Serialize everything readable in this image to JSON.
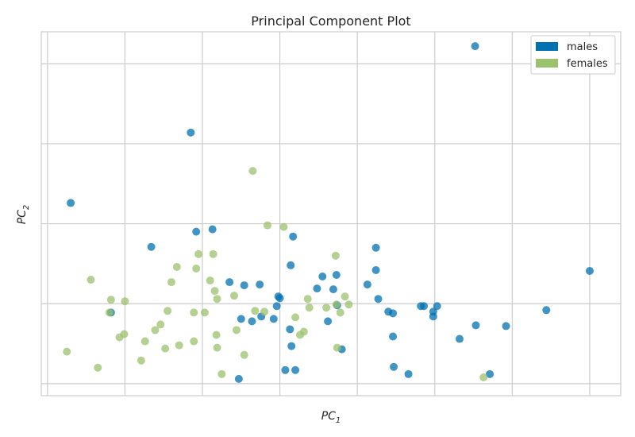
{
  "chart_data": {
    "type": "scatter",
    "title": "Principal Component Plot",
    "xlabel": {
      "base": "PC",
      "sub": "1"
    },
    "ylabel": {
      "base": "PC",
      "sub": "2"
    },
    "xlim": [
      -0.08,
      7.4
    ],
    "ylim": [
      -0.15,
      4.4
    ],
    "grid": true,
    "tick_labels_visible": false,
    "legend_position": "top-right",
    "series": [
      {
        "name": "males",
        "color": "#0072B2",
        "points": [
          [
            5.52,
            4.22
          ],
          [
            1.85,
            3.14
          ],
          [
            0.3,
            2.26
          ],
          [
            1.92,
            1.9
          ],
          [
            2.13,
            1.93
          ],
          [
            1.34,
            1.71
          ],
          [
            3.17,
            1.84
          ],
          [
            3.14,
            1.48
          ],
          [
            4.24,
            1.7
          ],
          [
            4.24,
            1.42
          ],
          [
            7.0,
            1.41
          ],
          [
            2.35,
            1.27
          ],
          [
            2.54,
            1.23
          ],
          [
            2.74,
            1.24
          ],
          [
            3.55,
            1.34
          ],
          [
            3.73,
            1.36
          ],
          [
            3.69,
            1.18
          ],
          [
            3.48,
            1.19
          ],
          [
            4.13,
            1.24
          ],
          [
            2.98,
            1.09
          ],
          [
            3.0,
            1.07
          ],
          [
            4.27,
            1.06
          ],
          [
            2.96,
            0.97
          ],
          [
            3.74,
            0.98
          ],
          [
            4.4,
            0.9
          ],
          [
            4.46,
            0.88
          ],
          [
            4.82,
            0.97
          ],
          [
            4.86,
            0.97
          ],
          [
            5.03,
            0.97
          ],
          [
            4.98,
            0.9
          ],
          [
            4.98,
            0.84
          ],
          [
            6.44,
            0.92
          ],
          [
            0.82,
            0.89
          ],
          [
            2.76,
            0.84
          ],
          [
            2.92,
            0.81
          ],
          [
            2.5,
            0.81
          ],
          [
            2.64,
            0.78
          ],
          [
            3.62,
            0.78
          ],
          [
            3.13,
            0.68
          ],
          [
            5.53,
            0.73
          ],
          [
            5.92,
            0.72
          ],
          [
            4.46,
            0.59
          ],
          [
            5.32,
            0.56
          ],
          [
            3.15,
            0.47
          ],
          [
            3.8,
            0.43
          ],
          [
            4.47,
            0.21
          ],
          [
            4.66,
            0.12
          ],
          [
            3.07,
            0.17
          ],
          [
            3.2,
            0.17
          ],
          [
            5.71,
            0.12
          ],
          [
            2.47,
            0.06
          ]
        ]
      },
      {
        "name": "females",
        "color": "#9BC26C",
        "points": [
          [
            2.65,
            2.66
          ],
          [
            2.84,
            1.98
          ],
          [
            3.05,
            1.96
          ],
          [
            3.72,
            1.6
          ],
          [
            1.95,
            1.62
          ],
          [
            2.14,
            1.62
          ],
          [
            1.67,
            1.46
          ],
          [
            1.92,
            1.44
          ],
          [
            0.56,
            1.3
          ],
          [
            1.6,
            1.27
          ],
          [
            2.1,
            1.29
          ],
          [
            2.16,
            1.16
          ],
          [
            2.19,
            1.06
          ],
          [
            2.41,
            1.1
          ],
          [
            3.36,
            1.06
          ],
          [
            0.82,
            1.05
          ],
          [
            1.0,
            1.03
          ],
          [
            3.84,
            1.09
          ],
          [
            3.38,
            0.95
          ],
          [
            3.6,
            0.95
          ],
          [
            3.73,
            0.99
          ],
          [
            3.89,
            0.99
          ],
          [
            0.8,
            0.89
          ],
          [
            1.55,
            0.91
          ],
          [
            1.89,
            0.89
          ],
          [
            2.03,
            0.89
          ],
          [
            2.68,
            0.91
          ],
          [
            2.8,
            0.9
          ],
          [
            3.78,
            0.89
          ],
          [
            3.2,
            0.83
          ],
          [
            1.46,
            0.74
          ],
          [
            1.39,
            0.67
          ],
          [
            2.44,
            0.67
          ],
          [
            3.31,
            0.65
          ],
          [
            3.26,
            0.61
          ],
          [
            0.99,
            0.62
          ],
          [
            0.93,
            0.58
          ],
          [
            2.18,
            0.61
          ],
          [
            1.26,
            0.53
          ],
          [
            1.89,
            0.53
          ],
          [
            1.7,
            0.48
          ],
          [
            1.52,
            0.44
          ],
          [
            2.19,
            0.45
          ],
          [
            3.74,
            0.45
          ],
          [
            0.25,
            0.4
          ],
          [
            2.54,
            0.36
          ],
          [
            1.21,
            0.29
          ],
          [
            0.65,
            0.2
          ],
          [
            2.25,
            0.12
          ],
          [
            5.63,
            0.08
          ]
        ]
      }
    ]
  }
}
